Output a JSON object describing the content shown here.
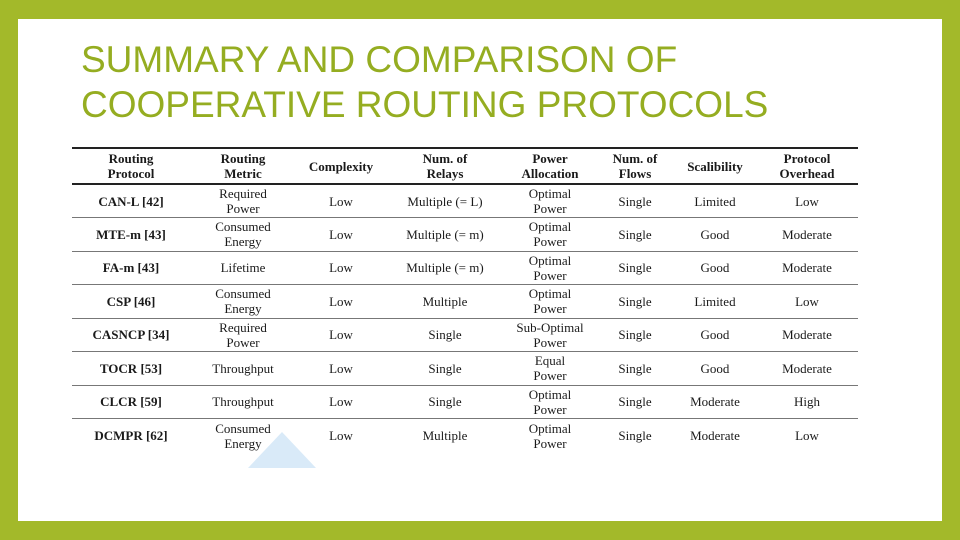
{
  "title": [
    "SUMMARY AND COMPARISON OF",
    "COOPERATIVE ROUTING PROTOCOLS"
  ],
  "colors": {
    "frame": "#a3b92a",
    "title": "#95ad21",
    "background": "#ffffff"
  },
  "table": {
    "headers": [
      [
        "Routing",
        "Protocol"
      ],
      [
        "Routing",
        "Metric"
      ],
      [
        "Complexity"
      ],
      [
        "Num. of",
        "Relays"
      ],
      [
        "Power",
        "Allocation"
      ],
      [
        "Num. of",
        "Flows"
      ],
      [
        "Scalibility"
      ],
      [
        "Protocol",
        "Overhead"
      ]
    ],
    "rows": [
      [
        [
          "CAN-L [42]"
        ],
        [
          "Required",
          "Power"
        ],
        [
          "Low"
        ],
        [
          "Multiple (= L)"
        ],
        [
          "Optimal",
          "Power"
        ],
        [
          "Single"
        ],
        [
          "Limited"
        ],
        [
          "Low"
        ]
      ],
      [
        [
          "MTE-m [43]"
        ],
        [
          "Consumed",
          "Energy"
        ],
        [
          "Low"
        ],
        [
          "Multiple (= m)"
        ],
        [
          "Optimal",
          "Power"
        ],
        [
          "Single"
        ],
        [
          "Good"
        ],
        [
          "Moderate"
        ]
      ],
      [
        [
          "FA-m [43]"
        ],
        [
          "Lifetime"
        ],
        [
          "Low"
        ],
        [
          "Multiple (= m)"
        ],
        [
          "Optimal",
          "Power"
        ],
        [
          "Single"
        ],
        [
          "Good"
        ],
        [
          "Moderate"
        ]
      ],
      [
        [
          "CSP [46]"
        ],
        [
          "Consumed",
          "Energy"
        ],
        [
          "Low"
        ],
        [
          "Multiple"
        ],
        [
          "Optimal",
          "Power"
        ],
        [
          "Single"
        ],
        [
          "Limited"
        ],
        [
          "Low"
        ]
      ],
      [
        [
          "CASNCP [34]"
        ],
        [
          "Required",
          "Power"
        ],
        [
          "Low"
        ],
        [
          "Single"
        ],
        [
          "Sub-Optimal",
          "Power"
        ],
        [
          "Single"
        ],
        [
          "Good"
        ],
        [
          "Moderate"
        ]
      ],
      [
        [
          "TOCR [53]"
        ],
        [
          "Throughput"
        ],
        [
          "Low"
        ],
        [
          "Single"
        ],
        [
          "Equal",
          "Power"
        ],
        [
          "Single"
        ],
        [
          "Good"
        ],
        [
          "Moderate"
        ]
      ],
      [
        [
          "CLCR [59]"
        ],
        [
          "Throughput"
        ],
        [
          "Low"
        ],
        [
          "Single"
        ],
        [
          "Optimal",
          "Power"
        ],
        [
          "Single"
        ],
        [
          "Moderate"
        ],
        [
          "High"
        ]
      ],
      [
        [
          "DCMPR [62]"
        ],
        [
          "Consumed",
          "Energy"
        ],
        [
          "Low"
        ],
        [
          "Multiple"
        ],
        [
          "Optimal",
          "Power"
        ],
        [
          "Single"
        ],
        [
          "Moderate"
        ],
        [
          "Low"
        ]
      ]
    ]
  }
}
